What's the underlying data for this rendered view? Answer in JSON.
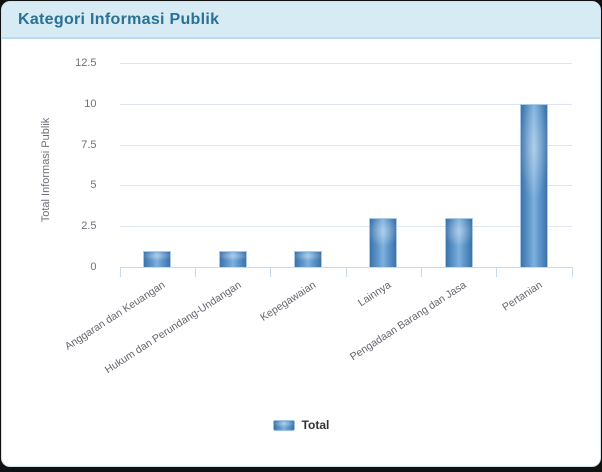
{
  "page": {
    "background_color": "#111111"
  },
  "card": {
    "title": "Kategori Informasi Publik",
    "header_bg": "#d7ebf5",
    "header_border": "#b9dbeb",
    "title_color": "#2b7095",
    "border_color": "#cde3ef"
  },
  "chart_data": {
    "type": "bar",
    "title": "Kategori Informasi Publik",
    "categories": [
      "Anggaran dan Keuangan",
      "Hukum dan Perundang-Undangan",
      "Kepegawaian",
      "Lainnya",
      "Pengadaan Barang dan Jasa",
      "Pertanian"
    ],
    "series": [
      {
        "name": "Total",
        "values": [
          1,
          1,
          1,
          3,
          3,
          10
        ]
      }
    ],
    "xlabel": "",
    "ylabel": "Total Informasi Publik",
    "ylim": [
      0,
      12.5
    ],
    "yticks": [
      "0",
      "2.5",
      "5",
      "7.5",
      "10",
      "12.5"
    ],
    "grid": true,
    "legend_position": "bottom",
    "colors": {
      "bar_edge": "#3c72a9",
      "bar_mid": "#7eb1de",
      "bar_border": "#a9c9e4",
      "grid_line": "#e0e6f1",
      "axis_line": "#c3dbec",
      "y_tick_text": "#6e7079",
      "x_tick_text": "#62656d",
      "legend_text": "#333333"
    }
  }
}
